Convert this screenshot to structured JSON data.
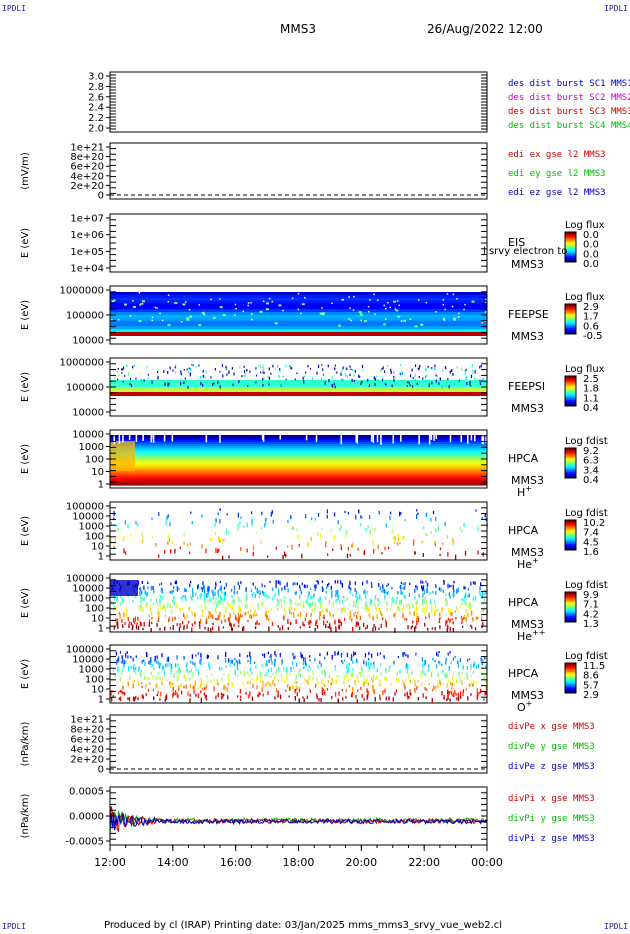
{
  "corners": {
    "tl": "IPDLI",
    "tr": "IPDLI",
    "bl": "IPDLI",
    "br": "IPDLI"
  },
  "header": {
    "spacecraft": "MMS3",
    "datetime": "26/Aug/2022 12:00"
  },
  "footer": {
    "text": "Produced by cl (IRAP)   Printing date: 03/Jan/2025   mms_mms3_srvy_vue_web2.cl"
  },
  "colors": {
    "c1": "#0000cc",
    "c2": "#cc00cc",
    "c3": "#cc0000",
    "c4": "#00bb00",
    "frame": "#000000",
    "dashed": "#000000"
  },
  "chart_data": {
    "type": "heatmap",
    "time_axis": {
      "ticks": [
        "12:00",
        "14:00",
        "16:00",
        "18:00",
        "20:00",
        "22:00",
        "00:00"
      ],
      "range_hours": [
        12,
        24
      ]
    },
    "panels": [
      {
        "id": "desdist",
        "ylabel": "",
        "yticks": [
          "3.0",
          "2.8",
          "2.6",
          "2.4",
          "2.2",
          "2.0"
        ],
        "ylim": [
          2.0,
          3.0
        ],
        "legend": [
          {
            "text": "des dist burst SC1 MMS1",
            "color": "c1"
          },
          {
            "text": "des dist burst SC2 MMS2",
            "color": "c2"
          },
          {
            "text": "des dist burst SC3 MMS3",
            "color": "c3"
          },
          {
            "text": "des dist burst SC4 MMS4",
            "color": "c4"
          }
        ]
      },
      {
        "id": "edi",
        "ylabel": "(mV/m)",
        "yticks": [
          "1e+21",
          "8e+20",
          "6e+20",
          "4e+20",
          "2e+20",
          "0"
        ],
        "dashed_zero": true,
        "legend": [
          {
            "text": "edi ex gse l2 MMS3",
            "color": "c3"
          },
          {
            "text": "edi ey gse l2 MMS3",
            "color": "c4"
          },
          {
            "text": "edi ez gse l2 MMS3",
            "color": "c1"
          }
        ]
      },
      {
        "id": "eis",
        "ylabel": "E (eV)",
        "yticks": [
          "1e+07",
          "1e+06",
          "1e+05",
          "1e+04"
        ],
        "ylim": [
          10000,
          10000000
        ],
        "log": true,
        "side": [
          "EIS",
          "MMS3"
        ],
        "overlay": "l srvy electron to",
        "cb_title": "Log flux",
        "cb_ticks": [
          "0.0",
          "0.0",
          "0.0",
          "0.0"
        ]
      },
      {
        "id": "feepse",
        "ylabel": "E (eV)",
        "yticks": [
          "1000000",
          "100000",
          "10000"
        ],
        "ylim": [
          10000,
          1000000
        ],
        "log": true,
        "side": [
          "FEEPSE",
          "MMS3"
        ],
        "cb_title": "Log flux",
        "cb_ticks": [
          "2.9",
          "1.7",
          "0.6",
          "-0.5"
        ]
      },
      {
        "id": "feepsi",
        "ylabel": "E (eV)",
        "yticks": [
          "1000000",
          "100000",
          "10000"
        ],
        "ylim": [
          10000,
          1000000
        ],
        "log": true,
        "side": [
          "FEEPSI",
          "MMS3"
        ],
        "cb_title": "Log flux",
        "cb_ticks": [
          "2.5",
          "1.8",
          "1.1",
          "0.4"
        ]
      },
      {
        "id": "hpca_h",
        "ylabel": "E (eV)",
        "yticks": [
          "10000",
          "1000",
          "100",
          "10",
          "1"
        ],
        "ylim": [
          1,
          10000
        ],
        "log": true,
        "side": [
          "HPCA",
          "MMS3"
        ],
        "species": "H",
        "species_sup": "+",
        "cb_title": "Log fdist",
        "cb_ticks": [
          "9.2",
          "6.3",
          "3.4",
          "0.4"
        ]
      },
      {
        "id": "hpca_he",
        "ylabel": "E (eV)",
        "yticks": [
          "100000",
          "10000",
          "1000",
          "100",
          "10",
          "1"
        ],
        "ylim": [
          1,
          100000
        ],
        "log": true,
        "side": [
          "HPCA",
          "MMS3"
        ],
        "species": "He",
        "species_sup": "+",
        "cb_title": "Log fdist",
        "cb_ticks": [
          "10.2",
          "7.4",
          "4.5",
          "1.6"
        ]
      },
      {
        "id": "hpca_hepp",
        "ylabel": "E (eV)",
        "yticks": [
          "100000",
          "10000",
          "1000",
          "100",
          "10",
          "1"
        ],
        "ylim": [
          1,
          100000
        ],
        "log": true,
        "side": [
          "HPCA",
          "MMS3"
        ],
        "species": "He",
        "species_sup": "++",
        "cb_title": "Log fdist",
        "cb_ticks": [
          "9.9",
          "7.1",
          "4.2",
          "1.3"
        ]
      },
      {
        "id": "hpca_o",
        "ylabel": "E (eV)",
        "yticks": [
          "100000",
          "10000",
          "1000",
          "100",
          "10",
          "1"
        ],
        "ylim": [
          1,
          100000
        ],
        "log": true,
        "side": [
          "HPCA",
          "MMS3"
        ],
        "species": "O",
        "species_sup": "+",
        "cb_title": "Log fdist",
        "cb_ticks": [
          "11.5",
          "8.6",
          "5.7",
          "2.9"
        ]
      },
      {
        "id": "divpe",
        "ylabel": "(nPa/km)",
        "yticks": [
          "1e+21",
          "8e+20",
          "6e+20",
          "4e+20",
          "2e+20",
          "0"
        ],
        "dashed_zero": true,
        "legend": [
          {
            "text": "divPe x gse MMS3",
            "color": "c3"
          },
          {
            "text": "divPe y gse MMS3",
            "color": "c4"
          },
          {
            "text": "divPe z gse MMS3",
            "color": "c1"
          }
        ]
      },
      {
        "id": "divpi",
        "ylabel": "(nPa/km)",
        "yticks": [
          "0.0005",
          "0.0000",
          "-0.0005"
        ],
        "ylim": [
          -0.0007,
          0.0007
        ],
        "legend": [
          {
            "text": "divPi x gse MMS3",
            "color": "c3"
          },
          {
            "text": "divPi y gse MMS3",
            "color": "c4"
          },
          {
            "text": "divPi z gse MMS3",
            "color": "c1"
          }
        ]
      }
    ]
  }
}
